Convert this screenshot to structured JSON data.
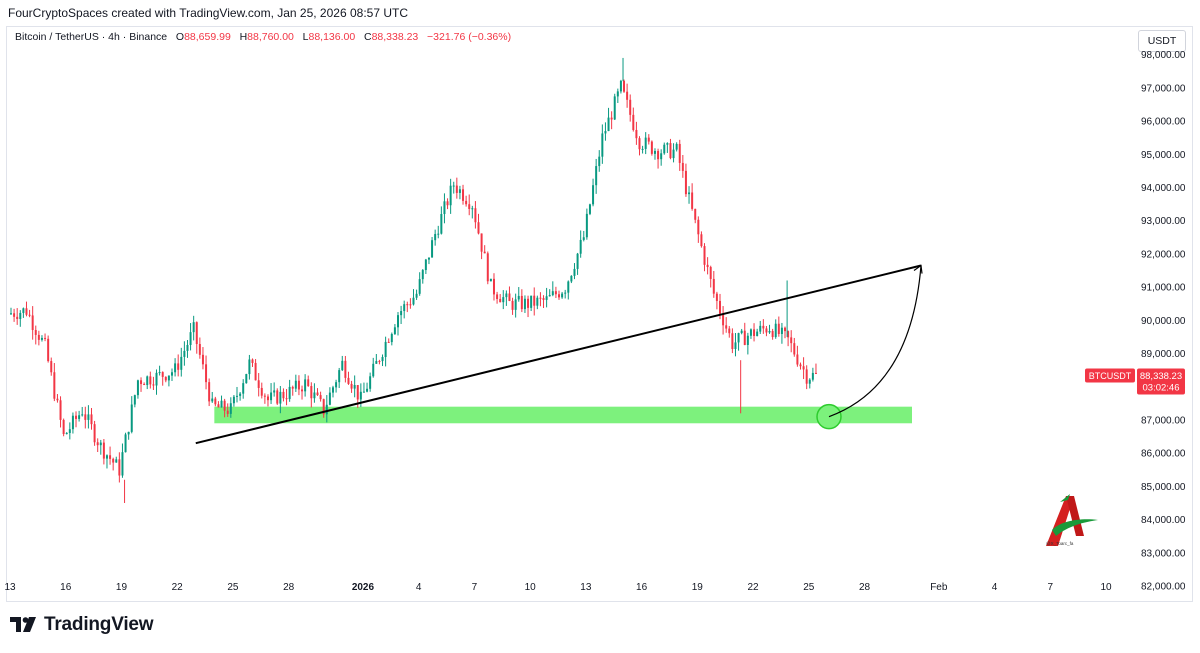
{
  "header": {
    "credit": "FourCryptoSpaces created with TradingView.com, Jan 25, 2026 08:57 UTC"
  },
  "symbol": {
    "name": "Bitcoin / TetherUS · 4h · Binance",
    "o_label": "O",
    "o_value": "88,659.99",
    "h_label": "H",
    "h_value": "88,760.00",
    "l_label": "L",
    "l_value": "88,136.00",
    "c_label": "C",
    "c_value": "88,338.23",
    "change": "−321.76 (−0.36%)"
  },
  "currency": "USDT",
  "price_tag": {
    "ticker": "BTCUSDT",
    "price": "88,338.23",
    "countdown": "03:02:46"
  },
  "footer": {
    "brand": "TradingView"
  },
  "watermark": {
    "handle": "@X_Toarc_fa"
  },
  "colors": {
    "up": "#089981",
    "down": "#f23645",
    "zone": "#66ee66",
    "line": "#000000"
  },
  "chart_data": {
    "type": "candlestick",
    "interval": "4h",
    "title": "Bitcoin / TetherUS · 4h · Binance",
    "y_axis": {
      "ticks": [
        "98,000.00",
        "97,000.00",
        "96,000.00",
        "95,000.00",
        "94,000.00",
        "93,000.00",
        "92,000.00",
        "91,000.00",
        "90,000.00",
        "89,000.00",
        "88,000.00",
        "87,000.00",
        "86,000.00",
        "85,000.00",
        "84,000.00",
        "83,000.00",
        "82,000.00"
      ],
      "range": [
        81700,
        98500
      ]
    },
    "x_axis": {
      "ticks": [
        "13",
        "16",
        "19",
        "22",
        "25",
        "28",
        "2026",
        "4",
        "7",
        "10",
        "13",
        "16",
        "19",
        "22",
        "25",
        "28",
        "Feb",
        "4",
        "7",
        "10"
      ],
      "range": [
        "2025-12-13",
        "2026-02-10"
      ]
    },
    "price_path": [
      {
        "date": "2025-12-13",
        "price": 90200
      },
      {
        "date": "2025-12-14",
        "price": 90300
      },
      {
        "date": "2025-12-15",
        "price": 89200
      },
      {
        "date": "2025-12-16",
        "price": 86500
      },
      {
        "date": "2025-12-17",
        "price": 87300
      },
      {
        "date": "2025-12-18",
        "price": 86200
      },
      {
        "date": "2025-12-19",
        "price": 85500
      },
      {
        "date": "2025-12-20",
        "price": 88200
      },
      {
        "date": "2025-12-21",
        "price": 88300
      },
      {
        "date": "2025-12-22",
        "price": 88500
      },
      {
        "date": "2025-12-23",
        "price": 89700
      },
      {
        "date": "2025-12-24",
        "price": 87400
      },
      {
        "date": "2025-12-25",
        "price": 87300
      },
      {
        "date": "2025-12-26",
        "price": 88700
      },
      {
        "date": "2025-12-27",
        "price": 87600
      },
      {
        "date": "2025-12-28",
        "price": 87800
      },
      {
        "date": "2025-12-29",
        "price": 88100
      },
      {
        "date": "2025-12-30",
        "price": 87300
      },
      {
        "date": "2025-12-31",
        "price": 88700
      },
      {
        "date": "2026-01-01",
        "price": 87600
      },
      {
        "date": "2026-01-02",
        "price": 88900
      },
      {
        "date": "2026-01-03",
        "price": 90200
      },
      {
        "date": "2026-01-04",
        "price": 90800
      },
      {
        "date": "2026-01-05",
        "price": 92600
      },
      {
        "date": "2026-01-06",
        "price": 94100
      },
      {
        "date": "2026-01-07",
        "price": 93500
      },
      {
        "date": "2026-01-08",
        "price": 91000
      },
      {
        "date": "2026-01-09",
        "price": 90500
      },
      {
        "date": "2026-01-10",
        "price": 90500
      },
      {
        "date": "2026-01-11",
        "price": 90600
      },
      {
        "date": "2026-01-12",
        "price": 91000
      },
      {
        "date": "2026-01-13",
        "price": 92500
      },
      {
        "date": "2026-01-14",
        "price": 95500
      },
      {
        "date": "2026-01-15",
        "price": 97000
      },
      {
        "date": "2026-01-16",
        "price": 95400
      },
      {
        "date": "2026-01-17",
        "price": 95100
      },
      {
        "date": "2026-01-18",
        "price": 95100
      },
      {
        "date": "2026-01-19",
        "price": 92900
      },
      {
        "date": "2026-01-20",
        "price": 90800
      },
      {
        "date": "2026-01-21",
        "price": 89300
      },
      {
        "date": "2026-01-22",
        "price": 89600
      },
      {
        "date": "2026-01-23",
        "price": 89800
      },
      {
        "date": "2026-01-24",
        "price": 89400
      },
      {
        "date": "2026-01-25",
        "price": 88338
      }
    ],
    "annotations": {
      "support_zone": {
        "from": "2025-12-24",
        "to": "2026-01-30",
        "low": 86900,
        "high": 87400
      },
      "trendline": {
        "start": {
          "date": "2025-12-23",
          "price": 86300
        },
        "end": {
          "date": "2026-01-30",
          "price": 91650
        }
      },
      "projection_arrow": {
        "from": {
          "date": "2026-01-25",
          "price": 87100
        },
        "to": {
          "date": "2026-01-30",
          "price": 91650
        }
      },
      "target_circle": {
        "date": "2026-01-25",
        "price": 87100
      }
    },
    "grid": false,
    "legend": "top-left"
  }
}
